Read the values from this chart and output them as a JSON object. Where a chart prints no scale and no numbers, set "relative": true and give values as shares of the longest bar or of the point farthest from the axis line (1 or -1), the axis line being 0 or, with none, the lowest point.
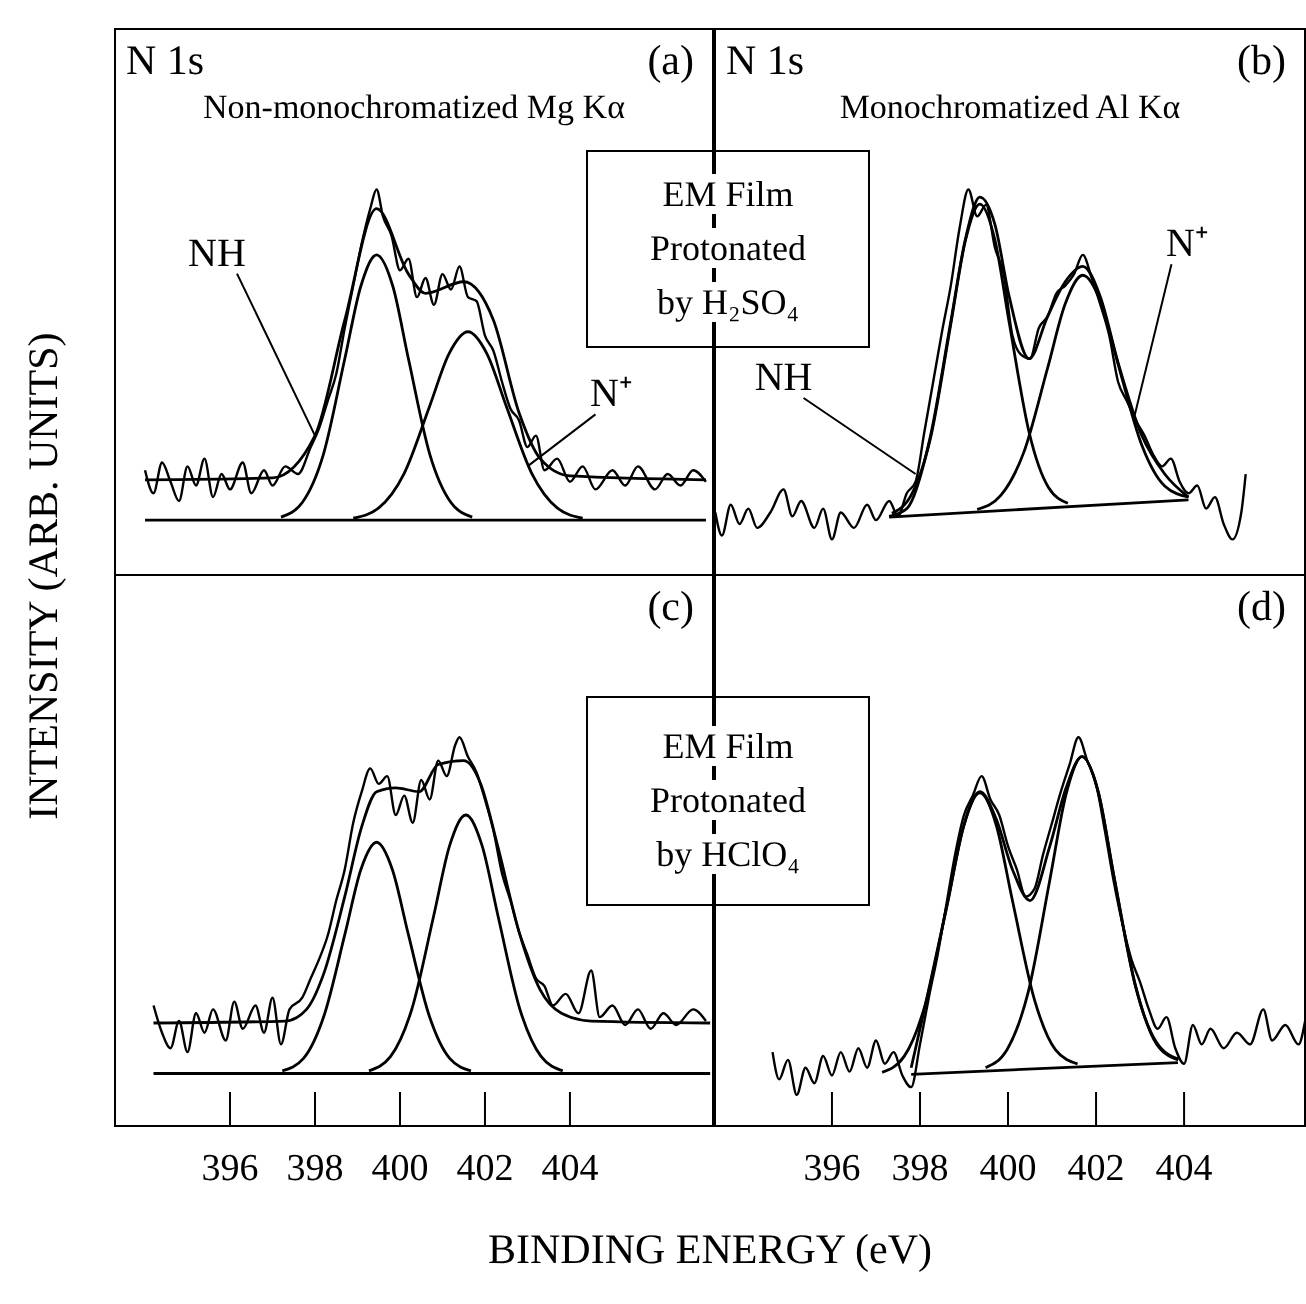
{
  "chart_data": [
    {
      "type": "line",
      "relative": true,
      "title": "N 1s",
      "subtitle": "Non-monochromatized Mg Kα",
      "ylabel": "INTENSITY (ARB. UNITS)",
      "xlim": [
        393.27,
        407.39
      ],
      "xticks": [
        396,
        398,
        400,
        402,
        404
      ],
      "tick_labels": false,
      "annotations": [
        "(a)",
        {
          "text": "NH",
          "x": 398.0,
          "y": 0.36
        },
        {
          "text": "N⁺",
          "x": 403.0,
          "y": 0.28
        },
        "EM Film Protonated by H₂SO₄"
      ],
      "series": [
        {
          "color": "#000000",
          "x": [
            394.0,
            394.2,
            394.4,
            394.6,
            394.8,
            395.0,
            395.2,
            395.4,
            395.6,
            395.8,
            396.0,
            396.3,
            396.5,
            396.8,
            397.0,
            397.3,
            397.6,
            397.9,
            398.1,
            398.3,
            398.5,
            398.7,
            398.9,
            399.1,
            399.3,
            399.45,
            399.6,
            399.8,
            400.0,
            400.2,
            400.4,
            400.6,
            400.8,
            401.0,
            401.2,
            401.4,
            401.6,
            401.8,
            402.0,
            402.2,
            402.4,
            402.6,
            402.8,
            403.0,
            403.2,
            403.4,
            403.7,
            404.0,
            404.3,
            404.6,
            405.0,
            405.3,
            405.6,
            406.0,
            406.3,
            406.6,
            406.9,
            407.2
          ],
          "values": [
            0.27,
            0.21,
            0.29,
            0.24,
            0.19,
            0.28,
            0.23,
            0.3,
            0.2,
            0.26,
            0.22,
            0.29,
            0.21,
            0.27,
            0.23,
            0.28,
            0.26,
            0.33,
            0.38,
            0.45,
            0.52,
            0.64,
            0.75,
            0.86,
            0.95,
            1.0,
            0.93,
            0.88,
            0.79,
            0.82,
            0.72,
            0.77,
            0.7,
            0.78,
            0.74,
            0.8,
            0.72,
            0.71,
            0.62,
            0.58,
            0.5,
            0.43,
            0.4,
            0.33,
            0.36,
            0.27,
            0.3,
            0.24,
            0.28,
            0.22,
            0.27,
            0.23,
            0.28,
            0.22,
            0.26,
            0.23,
            0.27,
            0.24
          ]
        },
        {
          "color": "#000000",
          "x": [
            394.0,
            397.0,
            398.0,
            398.7,
            399.45,
            400.2,
            400.6,
            401.5,
            402.2,
            402.8,
            403.3,
            404.0,
            407.2
          ],
          "values": [
            0.245,
            0.25,
            0.36,
            0.66,
            0.95,
            0.78,
            0.73,
            0.76,
            0.66,
            0.42,
            0.3,
            0.255,
            0.245
          ]
        },
        {
          "color": "#000000",
          "x": [
            397.2,
            397.7,
            398.2,
            398.7,
            399.08,
            399.45,
            399.83,
            400.2,
            400.7,
            401.2,
            401.7
          ],
          "values": [
            0.148,
            0.186,
            0.312,
            0.559,
            0.749,
            0.83,
            0.749,
            0.559,
            0.312,
            0.186,
            0.148
          ]
        },
        {
          "color": "#000000",
          "x": [
            398.9,
            399.5,
            400.1,
            400.7,
            401.15,
            401.6,
            402.05,
            402.5,
            403.1,
            403.7,
            404.3
          ],
          "values": [
            0.145,
            0.172,
            0.262,
            0.437,
            0.572,
            0.63,
            0.572,
            0.437,
            0.262,
            0.172,
            0.145
          ]
        },
        {
          "color": "#000000",
          "x": [
            394.0,
            407.2
          ],
          "values": [
            0.14,
            0.14
          ]
        }
      ]
    },
    {
      "type": "line",
      "relative": true,
      "title": "N 1s",
      "subtitle": "Monochromatized Al Kα",
      "xlim": [
        393.32,
        406.77
      ],
      "xticks": [
        396,
        398,
        400,
        402,
        404
      ],
      "tick_labels": false,
      "annotations": [
        "(b)",
        {
          "text": "NH",
          "x": 397.9,
          "y": 0.26
        },
        {
          "text": "N⁺",
          "x": 402.85,
          "y": 0.4
        }
      ],
      "series": [
        {
          "color": "#000000",
          "x": [
            393.35,
            393.5,
            393.7,
            393.9,
            394.1,
            394.3,
            394.6,
            394.9,
            395.1,
            395.3,
            395.6,
            395.8,
            396.0,
            396.2,
            396.5,
            396.8,
            397.0,
            397.3,
            397.5,
            397.7,
            397.9,
            398.1,
            398.3,
            398.5,
            398.7,
            398.9,
            399.1,
            399.3,
            399.5,
            399.7,
            399.9,
            400.1,
            400.3,
            400.5,
            400.7,
            400.9,
            401.1,
            401.3,
            401.5,
            401.7,
            401.9,
            402.1,
            402.3,
            402.5,
            402.7,
            402.9,
            403.1,
            403.3,
            403.5,
            403.7,
            403.9,
            404.1,
            404.3,
            404.5,
            404.7,
            404.9,
            405.1,
            405.3,
            405.4
          ],
          "values": [
            0.16,
            0.1,
            0.18,
            0.13,
            0.17,
            0.12,
            0.16,
            0.22,
            0.15,
            0.19,
            0.12,
            0.17,
            0.09,
            0.16,
            0.12,
            0.18,
            0.14,
            0.19,
            0.15,
            0.21,
            0.24,
            0.37,
            0.5,
            0.63,
            0.75,
            0.9,
            1.0,
            0.93,
            0.96,
            0.85,
            0.78,
            0.62,
            0.57,
            0.56,
            0.64,
            0.67,
            0.73,
            0.75,
            0.78,
            0.83,
            0.77,
            0.7,
            0.62,
            0.5,
            0.45,
            0.4,
            0.36,
            0.31,
            0.28,
            0.3,
            0.24,
            0.21,
            0.23,
            0.17,
            0.2,
            0.13,
            0.09,
            0.16,
            0.26
          ]
        },
        {
          "color": "#000000",
          "x": [
            397.3,
            397.7,
            398.24,
            398.69,
            399.03,
            399.36,
            399.7,
            400.03,
            400.48,
            400.9,
            401.3,
            401.7,
            402.1,
            402.5,
            403.04,
            403.56,
            404.1
          ],
          "values": [
            0.15,
            0.17,
            0.36,
            0.65,
            0.87,
            0.98,
            0.91,
            0.72,
            0.56,
            0.67,
            0.76,
            0.8,
            0.72,
            0.55,
            0.36,
            0.26,
            0.2
          ]
        },
        {
          "color": "#000000",
          "x": [
            397.36,
            397.8,
            398.24,
            398.69,
            399.03,
            399.36,
            399.7,
            400.03,
            400.48,
            400.92,
            401.36
          ],
          "values": [
            0.158,
            0.205,
            0.354,
            0.643,
            0.866,
            0.962,
            0.87,
            0.652,
            0.368,
            0.225,
            0.184
          ]
        },
        {
          "color": "#000000",
          "x": [
            399.3,
            399.84,
            400.36,
            400.9,
            401.3,
            401.7,
            402.1,
            402.5,
            403.04,
            403.56,
            404.1
          ],
          "values": [
            0.168,
            0.205,
            0.317,
            0.536,
            0.703,
            0.777,
            0.709,
            0.546,
            0.335,
            0.229,
            0.2
          ]
        },
        {
          "color": "#000000",
          "x": [
            397.3,
            404.1
          ],
          "values": [
            0.148,
            0.193
          ]
        }
      ]
    },
    {
      "type": "line",
      "relative": true,
      "xlabel": "BINDING ENERGY (eV)",
      "xlim": [
        393.27,
        407.39
      ],
      "xticks": [
        396,
        398,
        400,
        402,
        404
      ],
      "tick_labels": "x",
      "annotations": [
        "(c)",
        "EM Film Protonated by HClO₄"
      ],
      "series": [
        {
          "color": "#000000",
          "x": [
            394.2,
            394.4,
            394.6,
            394.8,
            395.0,
            395.2,
            395.4,
            395.6,
            395.9,
            396.1,
            396.3,
            396.6,
            396.8,
            397.0,
            397.2,
            397.4,
            397.7,
            397.9,
            398.1,
            398.3,
            398.5,
            398.7,
            398.9,
            399.1,
            399.3,
            399.5,
            399.7,
            399.9,
            400.1,
            400.3,
            400.5,
            400.7,
            400.9,
            401.1,
            401.3,
            401.4,
            401.6,
            401.8,
            402.0,
            402.2,
            402.4,
            402.6,
            402.8,
            403.0,
            403.2,
            403.4,
            403.6,
            403.9,
            404.2,
            404.5,
            404.7,
            405.0,
            405.3,
            405.6,
            405.9,
            406.2,
            406.5,
            406.9,
            407.2
          ],
          "values": [
            0.31,
            0.24,
            0.2,
            0.27,
            0.19,
            0.29,
            0.24,
            0.3,
            0.22,
            0.32,
            0.25,
            0.31,
            0.24,
            0.33,
            0.21,
            0.3,
            0.33,
            0.38,
            0.43,
            0.49,
            0.58,
            0.66,
            0.78,
            0.86,
            0.92,
            0.88,
            0.9,
            0.8,
            0.85,
            0.78,
            0.89,
            0.84,
            0.94,
            0.9,
            0.98,
            1.0,
            0.95,
            0.91,
            0.84,
            0.76,
            0.65,
            0.58,
            0.5,
            0.44,
            0.38,
            0.36,
            0.31,
            0.34,
            0.29,
            0.4,
            0.28,
            0.31,
            0.26,
            0.3,
            0.25,
            0.29,
            0.26,
            0.3,
            0.27
          ]
        },
        {
          "color": "#000000",
          "x": [
            394.2,
            397.3,
            397.8,
            398.2,
            398.7,
            399.1,
            399.45,
            399.9,
            400.45,
            400.9,
            401.5,
            401.9,
            402.3,
            402.8,
            403.3,
            403.8,
            404.5,
            407.3
          ],
          "values": [
            0.265,
            0.27,
            0.3,
            0.39,
            0.59,
            0.77,
            0.86,
            0.87,
            0.86,
            0.93,
            0.94,
            0.88,
            0.72,
            0.5,
            0.35,
            0.29,
            0.27,
            0.265
          ]
        },
        {
          "color": "#000000",
          "x": [
            397.23,
            397.73,
            398.21,
            398.71,
            399.08,
            399.45,
            399.82,
            400.19,
            400.69,
            401.17,
            401.67
          ],
          "values": [
            0.142,
            0.174,
            0.283,
            0.496,
            0.66,
            0.73,
            0.66,
            0.496,
            0.283,
            0.174,
            0.142
          ]
        },
        {
          "color": "#000000",
          "x": [
            399.27,
            399.78,
            400.28,
            400.79,
            401.17,
            401.55,
            401.93,
            402.31,
            402.82,
            403.32,
            403.83
          ],
          "values": [
            0.142,
            0.179,
            0.301,
            0.539,
            0.722,
            0.8,
            0.722,
            0.539,
            0.301,
            0.179,
            0.142
          ]
        },
        {
          "color": "#000000",
          "x": [
            394.2,
            407.3
          ],
          "values": [
            0.135,
            0.135
          ]
        }
      ]
    },
    {
      "type": "line",
      "relative": true,
      "xlim": [
        393.32,
        406.77
      ],
      "xticks": [
        396,
        398,
        400,
        402,
        404
      ],
      "tick_labels": "x",
      "annotations": [
        "(d)"
      ],
      "series": [
        {
          "color": "#000000",
          "x": [
            394.65,
            394.8,
            395.0,
            395.2,
            395.4,
            395.6,
            395.8,
            396.0,
            396.2,
            396.4,
            396.6,
            396.8,
            397.0,
            397.2,
            397.4,
            397.6,
            397.8,
            398.0,
            398.2,
            398.4,
            398.6,
            398.8,
            399.0,
            399.2,
            399.4,
            399.6,
            399.8,
            400.0,
            400.2,
            400.4,
            400.6,
            400.8,
            401.0,
            401.2,
            401.4,
            401.6,
            401.8,
            402.0,
            402.2,
            402.4,
            402.6,
            402.8,
            403.0,
            403.2,
            403.4,
            403.6,
            403.8,
            404.0,
            404.2,
            404.4,
            404.6,
            404.9,
            405.2,
            405.5,
            405.8,
            406.0,
            406.3,
            406.6,
            406.75
          ],
          "values": [
            0.19,
            0.12,
            0.17,
            0.08,
            0.15,
            0.11,
            0.18,
            0.13,
            0.19,
            0.14,
            0.2,
            0.15,
            0.22,
            0.16,
            0.19,
            0.13,
            0.1,
            0.21,
            0.33,
            0.44,
            0.57,
            0.7,
            0.8,
            0.85,
            0.9,
            0.84,
            0.8,
            0.72,
            0.66,
            0.59,
            0.61,
            0.7,
            0.78,
            0.86,
            0.93,
            1.0,
            0.94,
            0.88,
            0.76,
            0.63,
            0.52,
            0.43,
            0.37,
            0.3,
            0.25,
            0.28,
            0.2,
            0.16,
            0.26,
            0.21,
            0.25,
            0.2,
            0.24,
            0.21,
            0.3,
            0.22,
            0.26,
            0.21,
            0.27
          ]
        },
        {
          "color": "#000000",
          "x": [
            397.8,
            398.12,
            398.62,
            398.99,
            399.36,
            399.73,
            400.1,
            400.5,
            400.95,
            401.32,
            401.68,
            402.05,
            402.41,
            402.9,
            403.38,
            403.87
          ],
          "values": [
            0.15,
            0.31,
            0.57,
            0.77,
            0.86,
            0.79,
            0.66,
            0.58,
            0.72,
            0.87,
            0.95,
            0.86,
            0.64,
            0.36,
            0.21,
            0.17
          ]
        },
        {
          "color": "#000000",
          "x": [
            397.14,
            397.64,
            398.12,
            398.62,
            398.99,
            399.36,
            399.73,
            400.1,
            400.6,
            401.08,
            401.58
          ],
          "values": [
            0.138,
            0.179,
            0.313,
            0.572,
            0.771,
            0.857,
            0.775,
            0.58,
            0.325,
            0.196,
            0.16
          ]
        },
        {
          "color": "#000000",
          "x": [
            399.49,
            399.98,
            400.46,
            400.95,
            401.32,
            401.68,
            402.05,
            402.41,
            402.9,
            403.38,
            403.87
          ],
          "values": [
            0.15,
            0.197,
            0.345,
            0.633,
            0.854,
            0.95,
            0.858,
            0.64,
            0.357,
            0.214,
            0.172
          ]
        },
        {
          "color": "#000000",
          "x": [
            397.8,
            403.86
          ],
          "values": [
            0.133,
            0.163
          ]
        }
      ]
    }
  ]
}
